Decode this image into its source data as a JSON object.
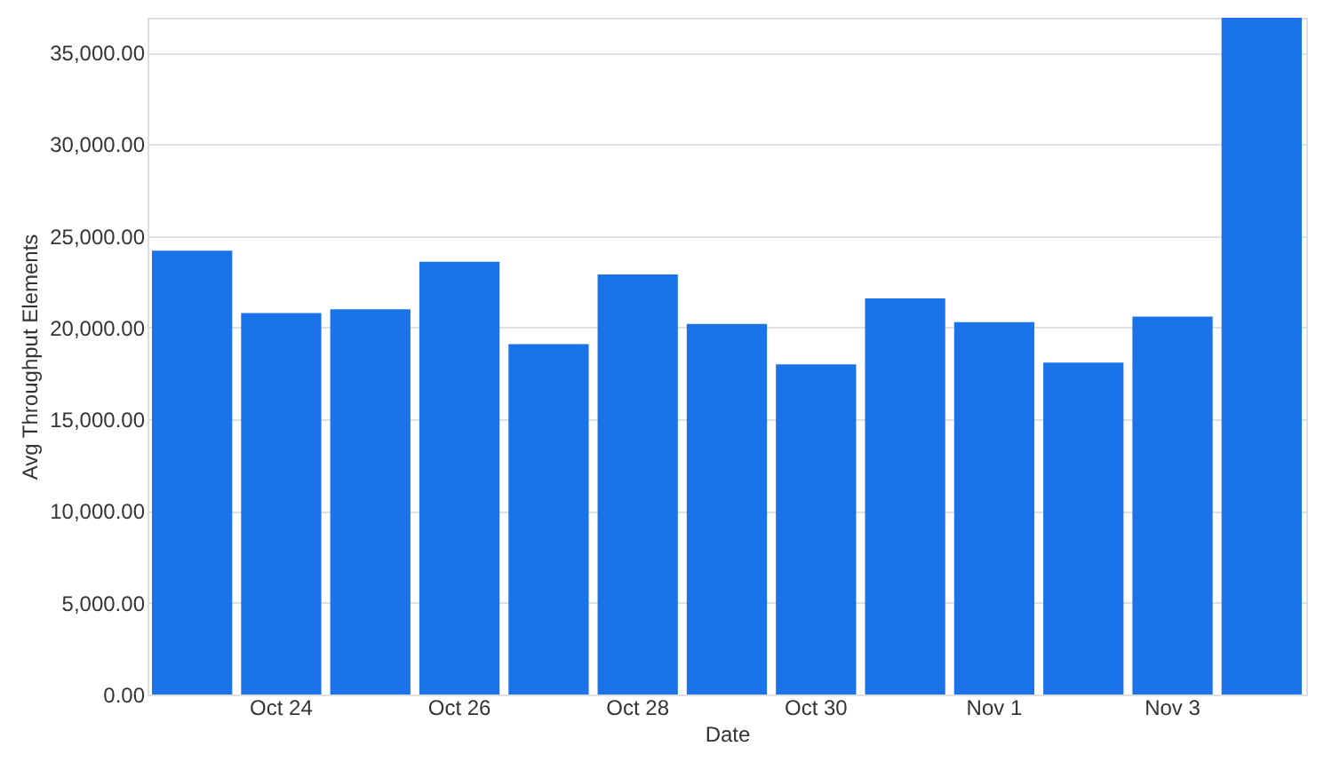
{
  "chart_data": {
    "type": "bar",
    "xlabel": "Date",
    "ylabel": "Avg Throughput Elements",
    "categories": [
      null,
      "Oct 24",
      null,
      "Oct 26",
      null,
      "Oct 28",
      null,
      "Oct 30",
      null,
      "Nov 1",
      null,
      "Nov 3",
      null
    ],
    "values": [
      24200,
      20800,
      21000,
      23600,
      19100,
      22900,
      20200,
      18000,
      21600,
      20300,
      18100,
      20600,
      36900
    ],
    "color": "#1a73e8",
    "ylim": [
      0,
      36900
    ],
    "yticks": [
      {
        "value": 0,
        "label": "0.00"
      },
      {
        "value": 5000,
        "label": "5,000.00"
      },
      {
        "value": 10000,
        "label": "10,000.00"
      },
      {
        "value": 15000,
        "label": "15,000.00"
      },
      {
        "value": 20000,
        "label": "20,000.00"
      },
      {
        "value": 25000,
        "label": "25,000.00"
      },
      {
        "value": 30000,
        "label": "30,000.00"
      },
      {
        "value": 35000,
        "label": "35,000.00"
      }
    ],
    "grid": "y"
  }
}
